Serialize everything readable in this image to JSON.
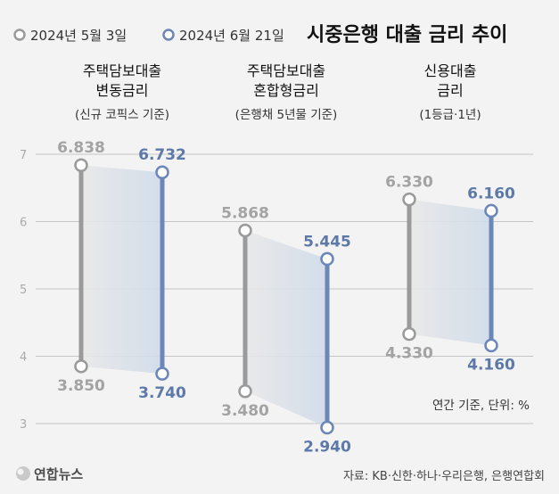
{
  "title": "시중은행 대출 금리 추이",
  "legend": [
    {
      "label": "2024년 5월 3일",
      "color": "#9a9a9a"
    },
    {
      "label": "2024년 6월 21일",
      "color": "#6b86b8"
    }
  ],
  "note": "연간 기준, 단위: %",
  "source": "자료: KB·신한·하나·우리은행, 은행연합회",
  "logo": "연합뉴스",
  "colors": {
    "gray_line": "#9a9a9a",
    "gray_label": "#a3a3a3",
    "blue_line": "#6b86b8",
    "blue_label": "#5d79a9",
    "band": "#d6dfea",
    "grid": "#c4c4c4"
  },
  "chart_data": {
    "type": "dumbbell",
    "ylim": [
      3,
      7
    ],
    "yticks": [
      3,
      4,
      5,
      6,
      7
    ],
    "grid": true,
    "groups": [
      {
        "title_lines": [
          "주택담보대출",
          "변동금리"
        ],
        "subtitle": "(신규 코픽스 기준)",
        "date1": {
          "max": 6.838,
          "min": 3.85,
          "max_label": "6.838",
          "min_label": "3.850"
        },
        "date2": {
          "max": 6.732,
          "min": 3.74,
          "max_label": "6.732",
          "min_label": "3.740"
        }
      },
      {
        "title_lines": [
          "주택담보대출",
          "혼합형금리"
        ],
        "subtitle": "(은행채 5년물 기준)",
        "date1": {
          "max": 5.868,
          "min": 3.48,
          "max_label": "5.868",
          "min_label": "3.480"
        },
        "date2": {
          "max": 5.445,
          "min": 2.94,
          "max_label": "5.445",
          "min_label": "2.940"
        }
      },
      {
        "title_lines": [
          "신용대출",
          "금리"
        ],
        "subtitle": "(1등급·1년)",
        "date1": {
          "max": 6.33,
          "min": 4.33,
          "max_label": "6.330",
          "min_label": "4.330"
        },
        "date2": {
          "max": 6.16,
          "min": 4.16,
          "max_label": "6.160",
          "min_label": "4.160"
        }
      }
    ]
  }
}
